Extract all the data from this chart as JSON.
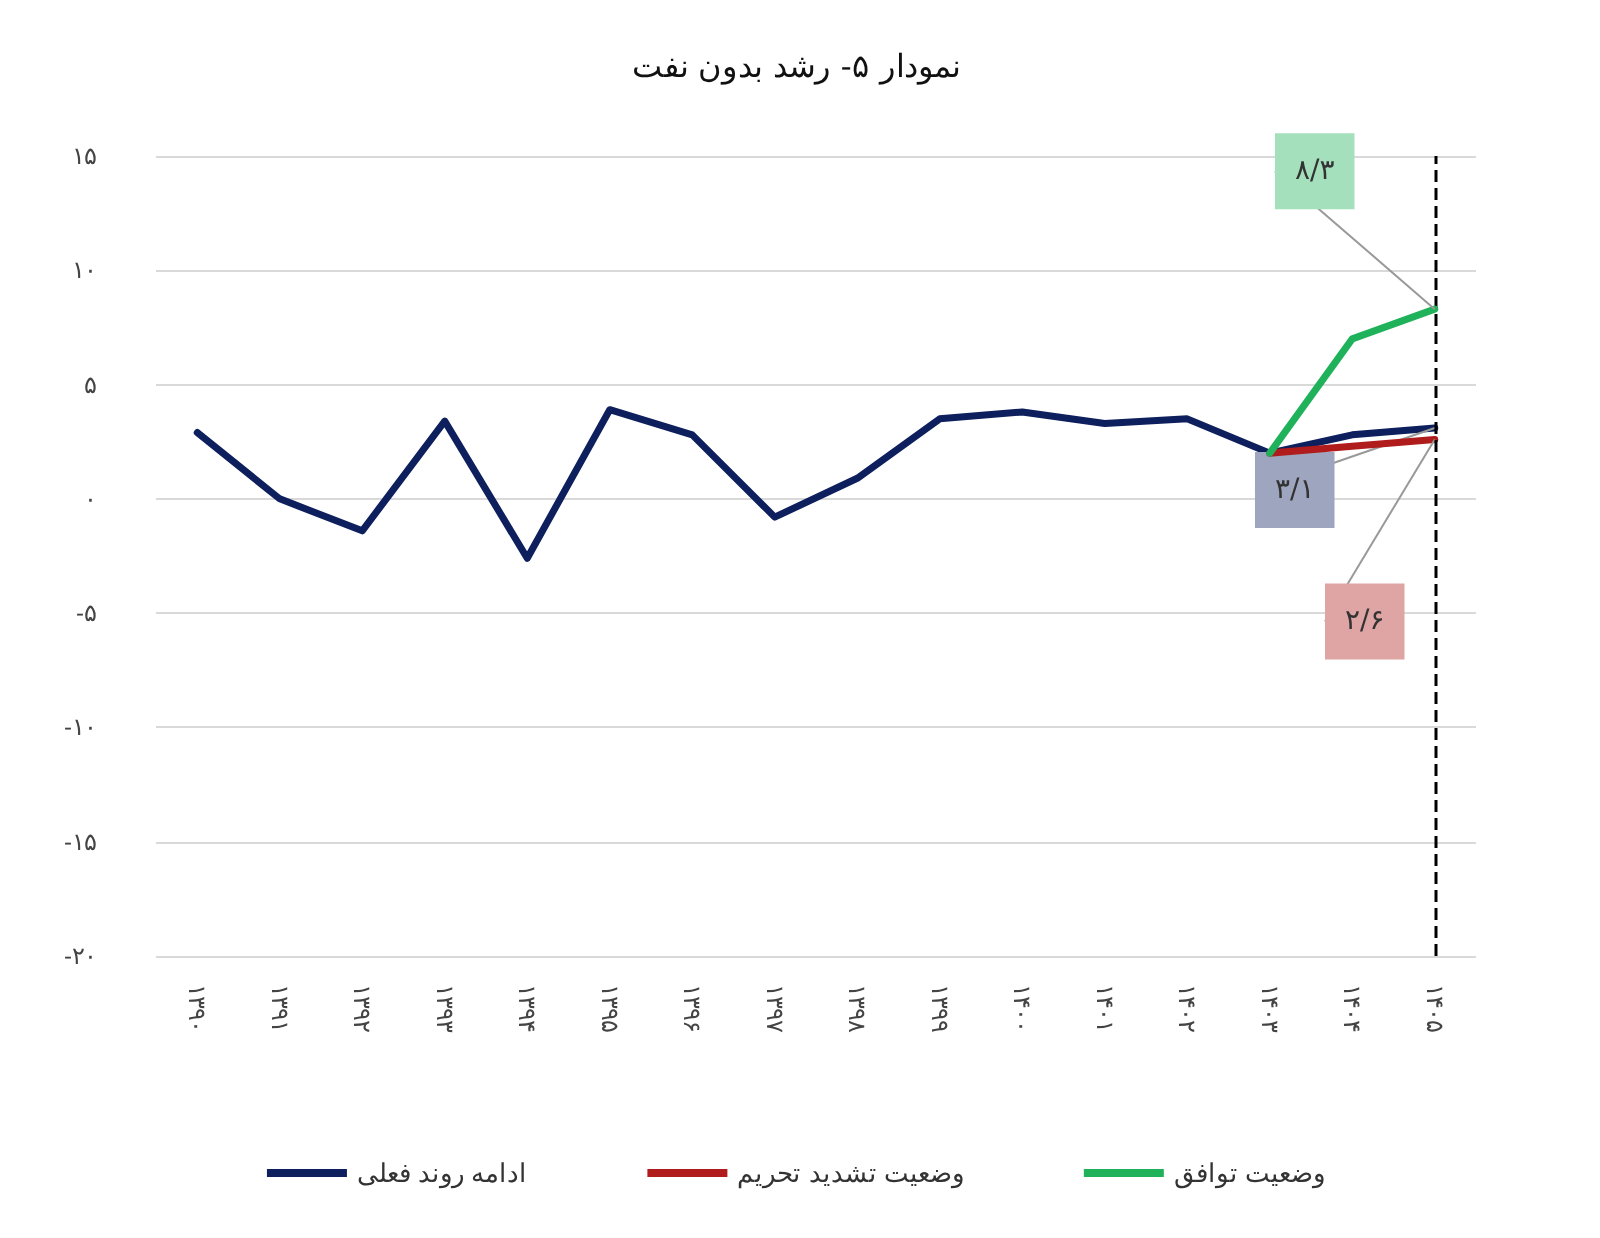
{
  "chart_data": {
    "type": "line",
    "title": "نمودار ۵- رشد بدون نفت",
    "categories": [
      "۱۳۹۰",
      "۱۳۹۱",
      "۱۳۹۲",
      "۱۳۹۳",
      "۱۳۹۴",
      "۱۳۹۵",
      "۱۳۹۶",
      "۱۳۹۷",
      "۱۳۹۸",
      "۱۳۹۹",
      "۱۴۰۰",
      "۱۴۰۱",
      "۱۴۰۲",
      "۱۴۰۳",
      "۱۴۰۴",
      "۱۴۰۵"
    ],
    "series": [
      {
        "name": "ادامه روند فعلی",
        "color": "#0d1f5c",
        "values": [
          2.9,
          0,
          -1.4,
          3.4,
          -2.6,
          3.9,
          2.8,
          -0.8,
          0.9,
          3.5,
          3.8,
          3.3,
          3.5,
          2.0,
          2.8,
          3.1
        ]
      },
      {
        "name": "وضعیت تشدید تحریم",
        "color": "#b01c1c",
        "values": [
          null,
          null,
          null,
          null,
          null,
          null,
          null,
          null,
          null,
          null,
          null,
          null,
          null,
          2.0,
          2.3,
          2.6
        ]
      },
      {
        "name": "وضعیت توافق",
        "color": "#1fb25a",
        "values": [
          null,
          null,
          null,
          null,
          null,
          null,
          null,
          null,
          null,
          null,
          null,
          null,
          null,
          2.0,
          7.0,
          8.3
        ]
      }
    ],
    "ylim": [
      -20,
      15
    ],
    "yticks": [
      {
        "value": -20,
        "label": "-۲۰"
      },
      {
        "value": -15,
        "label": "-۱۵"
      },
      {
        "value": -10,
        "label": "-۱۰"
      },
      {
        "value": -5,
        "label": "-۵"
      },
      {
        "value": 0,
        "label": "۰"
      },
      {
        "value": 5,
        "label": "۵"
      },
      {
        "value": 10,
        "label": "۱۰"
      },
      {
        "value": 15,
        "label": "۱۵"
      }
    ],
    "annotations": [
      {
        "text": "۸/۳",
        "x": "۱۴۰۵",
        "y": 8.3
      },
      {
        "text": "۳/۱",
        "x": "۱۴۰۵",
        "y": 3.1
      },
      {
        "text": "۲/۶",
        "x": "۱۴۰۵",
        "y": 2.6
      }
    ],
    "ref_lines": [
      {
        "axis": "x",
        "value": "۱۴۰۵",
        "color": "#000000",
        "line_style": "dashed"
      }
    ],
    "grid": "y",
    "legend": "bottom",
    "marker": "none",
    "line_style": "solid"
  }
}
